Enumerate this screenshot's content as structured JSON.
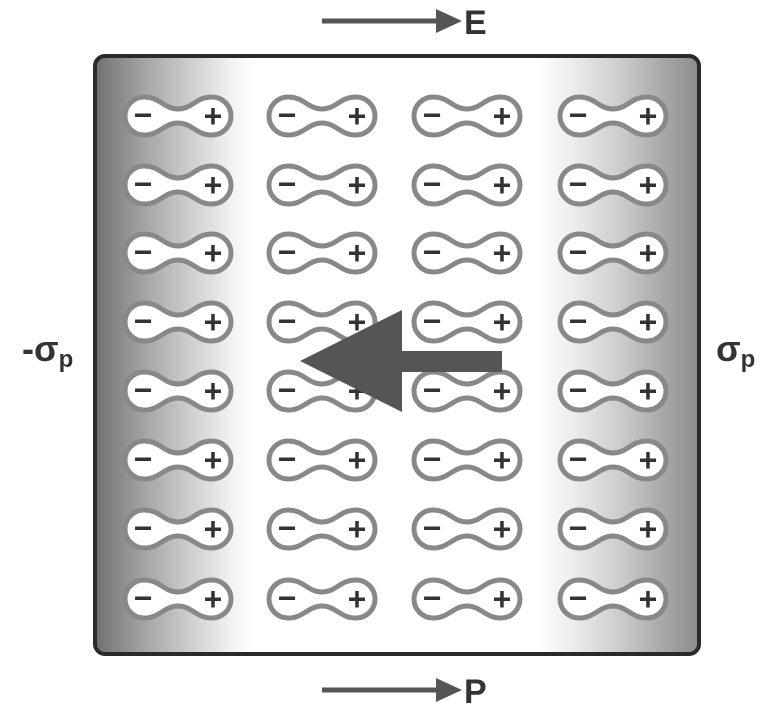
{
  "labels": {
    "field": "E",
    "polarization": "P",
    "left_charge_symbol": "-σ",
    "left_charge_subscript": "p",
    "right_charge_symbol": "σ",
    "right_charge_subscript": "p"
  },
  "dipole": {
    "negative_sign": "−",
    "positive_sign": "+"
  },
  "grid": {
    "rows": 8,
    "columns": 4
  },
  "colors": {
    "ink": "#333333",
    "arrow": "#555555",
    "dipole_outline": "#888888",
    "dipole_fill": "#ffffff",
    "slab_border": "#2a2a2a",
    "edge_dark": "#6f6f6f",
    "edge_light": "#ffffff"
  }
}
